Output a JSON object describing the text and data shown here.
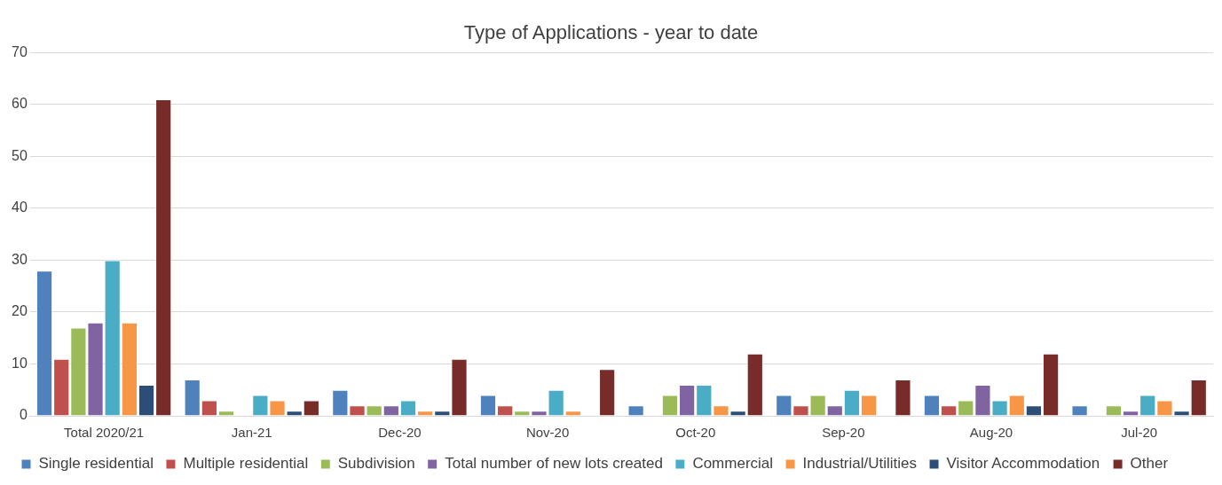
{
  "chart_data": {
    "type": "bar",
    "title": "Type of Applications - year to date",
    "categories": [
      "Total 2020/21",
      "Jan-21",
      "Dec-20",
      "Nov-20",
      "Oct-20",
      "Sep-20",
      "Aug-20",
      "Jul-20"
    ],
    "series": [
      {
        "name": "Single residential",
        "color": "#4f81bd",
        "values": [
          28,
          7,
          5,
          4,
          2,
          4,
          4,
          2
        ]
      },
      {
        "name": "Multiple residential",
        "color": "#c0504d",
        "values": [
          11,
          3,
          2,
          2,
          0,
          2,
          2,
          0
        ]
      },
      {
        "name": "Subdivision",
        "color": "#9bbb59",
        "values": [
          17,
          1,
          2,
          1,
          4,
          4,
          3,
          2
        ]
      },
      {
        "name": "Total number of new lots created",
        "color": "#8064a2",
        "values": [
          18,
          0,
          2,
          1,
          6,
          2,
          6,
          1
        ]
      },
      {
        "name": "Commercial",
        "color": "#4bacc6",
        "values": [
          30,
          4,
          3,
          5,
          6,
          5,
          3,
          4
        ]
      },
      {
        "name": "Industrial/Utilities",
        "color": "#f79646",
        "values": [
          18,
          3,
          1,
          1,
          2,
          4,
          4,
          3
        ]
      },
      {
        "name": "Visitor Accommodation",
        "color": "#2c4d75",
        "values": [
          6,
          1,
          1,
          0,
          1,
          0,
          2,
          1
        ]
      },
      {
        "name": "Other",
        "color": "#772c2a",
        "values": [
          61,
          3,
          11,
          9,
          12,
          7,
          12,
          7
        ]
      }
    ],
    "ylim": [
      0,
      70
    ],
    "yticks": [
      0,
      10,
      20,
      30,
      40,
      50,
      60,
      70
    ],
    "grid": "y",
    "legend": "bottom"
  }
}
